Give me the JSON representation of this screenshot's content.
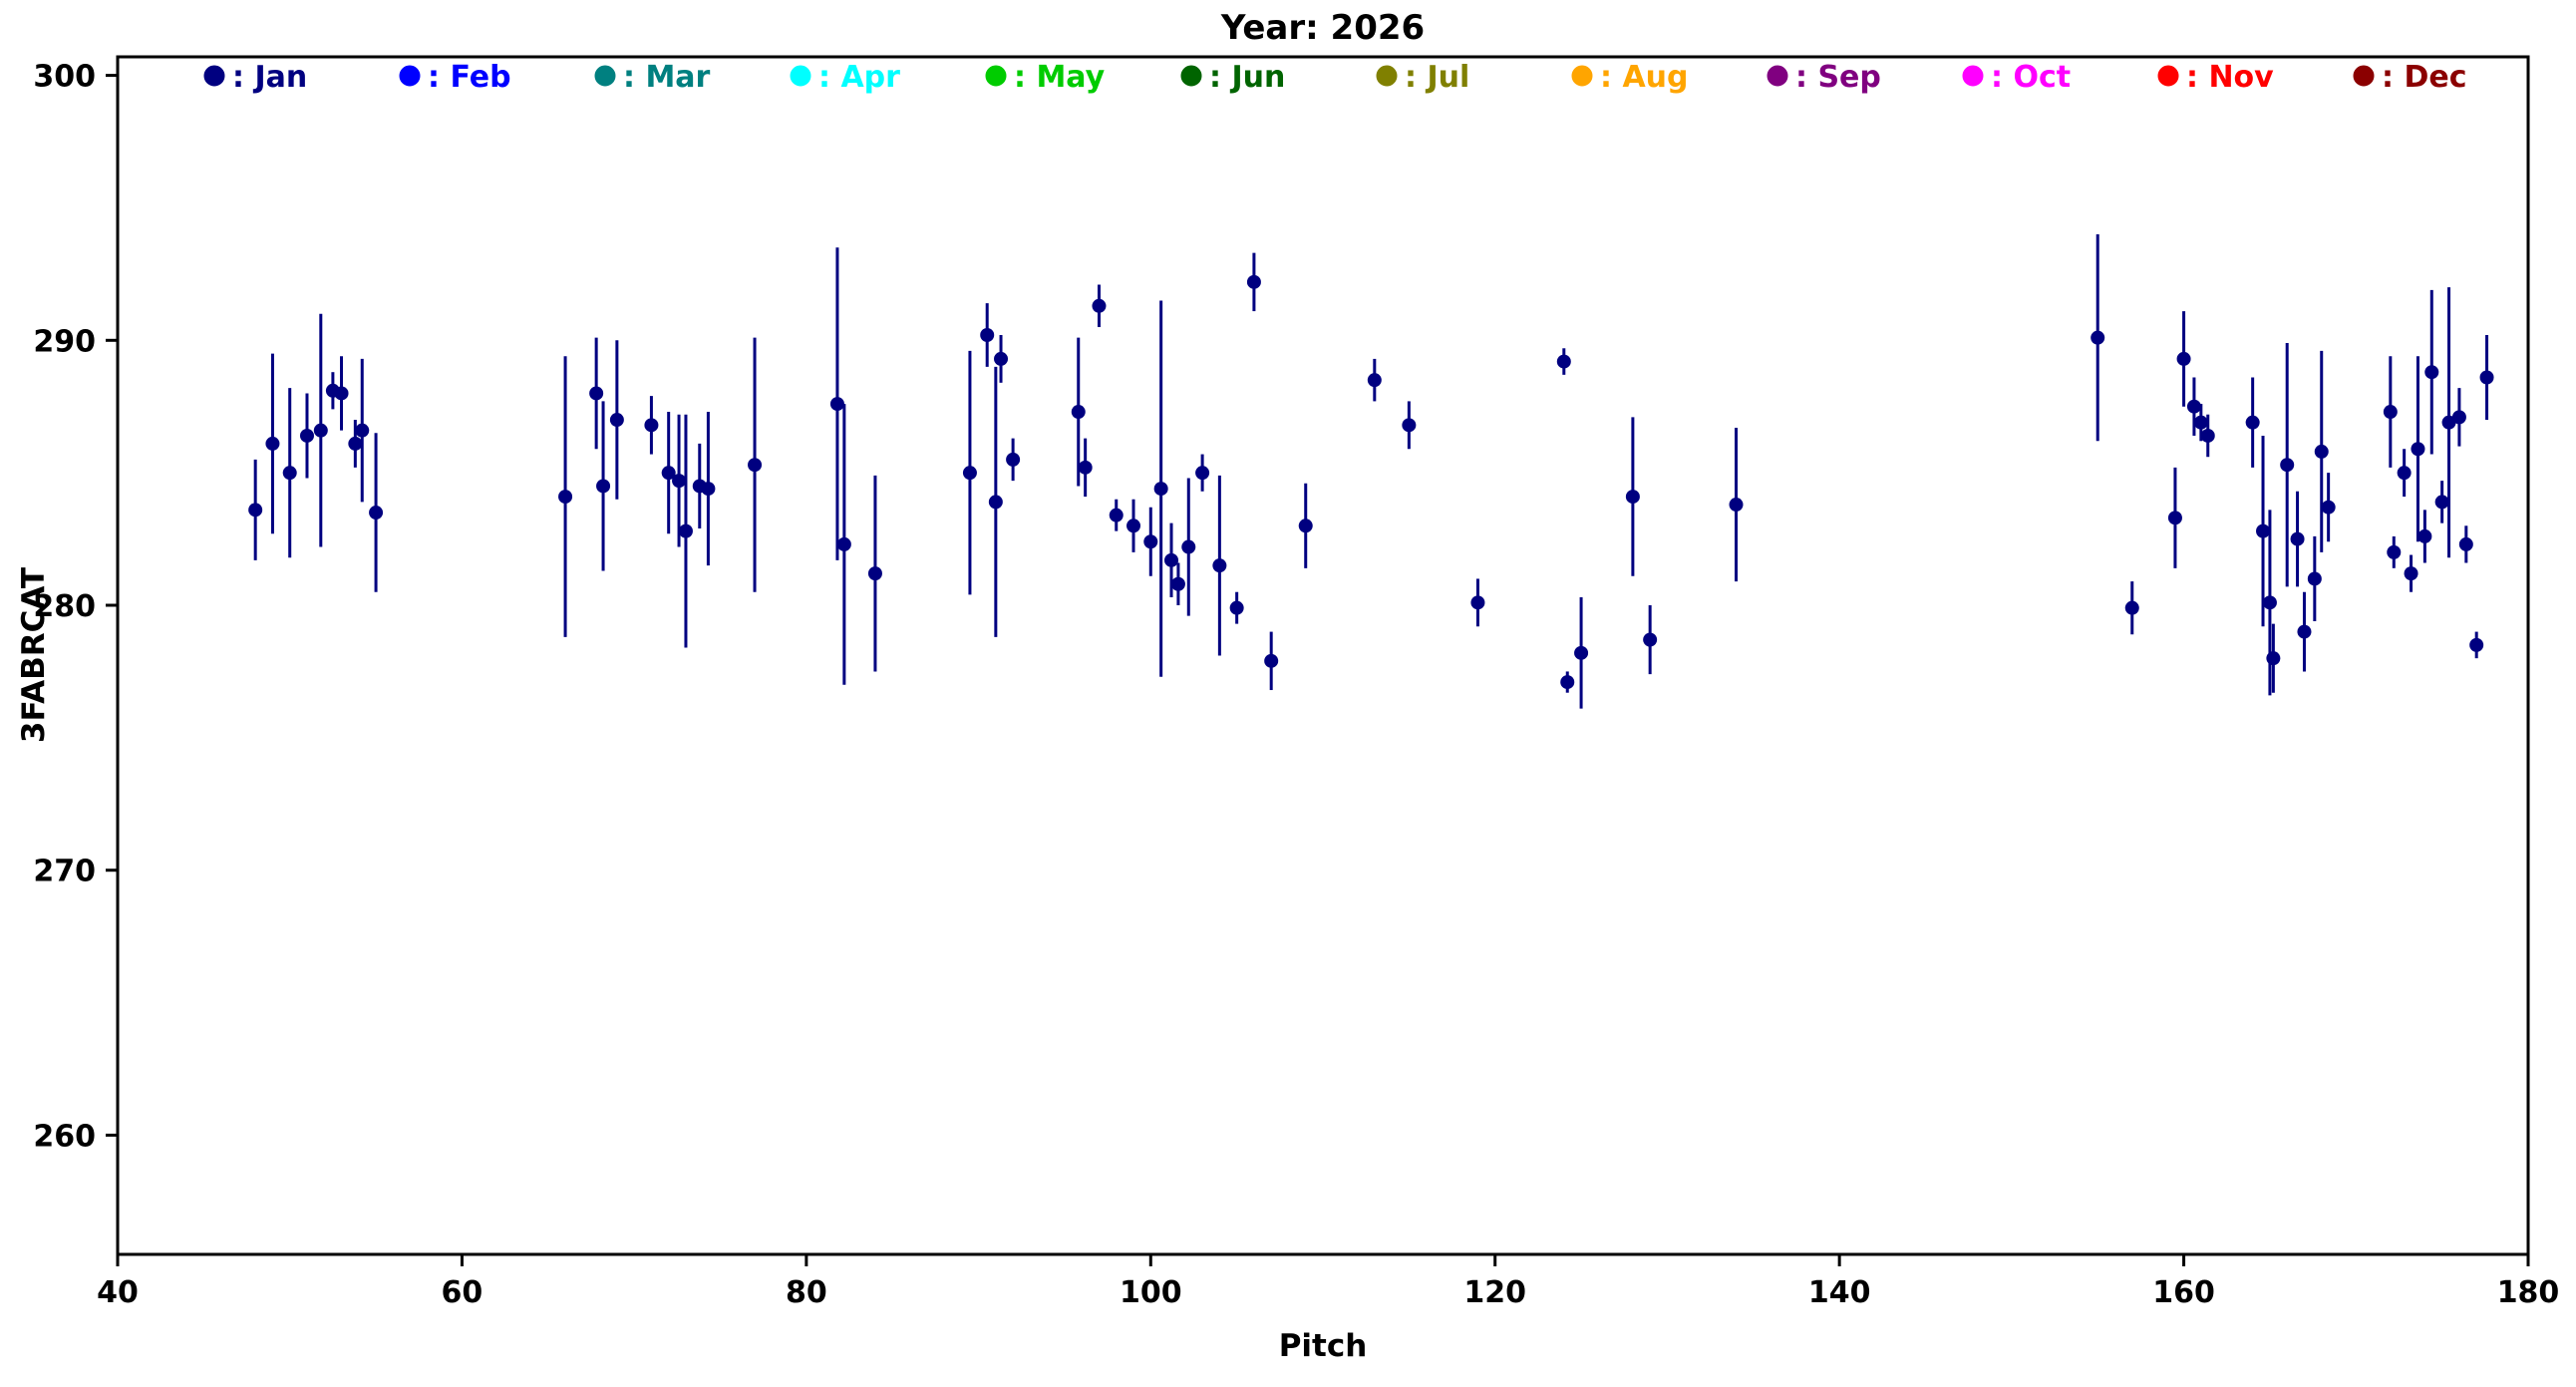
{
  "chart_data": {
    "type": "scatter",
    "title": "Year: 2026",
    "xlabel": "Pitch",
    "ylabel": "3FABRCAT",
    "xlim": [
      40,
      180
    ],
    "ylim": [
      255.5,
      300.7
    ],
    "xticks": [
      40,
      60,
      80,
      100,
      120,
      140,
      160,
      180
    ],
    "yticks": [
      260,
      270,
      280,
      290,
      300
    ],
    "grid": false,
    "legend_position": "top-inside",
    "legend": [
      {
        "label": "Jan",
        "color": "#000080"
      },
      {
        "label": "Feb",
        "color": "#0000FF"
      },
      {
        "label": "Mar",
        "color": "#008080"
      },
      {
        "label": "Apr",
        "color": "#00FFFF"
      },
      {
        "label": "May",
        "color": "#00CC00"
      },
      {
        "label": "Jun",
        "color": "#006400"
      },
      {
        "label": "Jul",
        "color": "#808000"
      },
      {
        "label": "Aug",
        "color": "#FFA500"
      },
      {
        "label": "Sep",
        "color": "#800080"
      },
      {
        "label": "Oct",
        "color": "#FF00FF"
      },
      {
        "label": "Nov",
        "color": "#FF0000"
      },
      {
        "label": "Dec",
        "color": "#8B0000"
      }
    ],
    "series": [
      {
        "name": "Jan",
        "color": "#000080",
        "marker": "circle",
        "error_bars": true,
        "points": [
          [
            48,
            283.6,
            1.9
          ],
          [
            49,
            286.1,
            3.4
          ],
          [
            50,
            285.0,
            3.2
          ],
          [
            51,
            286.4,
            1.6
          ],
          [
            51.8,
            286.6,
            4.4
          ],
          [
            52.5,
            288.1,
            0.7
          ],
          [
            53,
            288.0,
            1.4
          ],
          [
            53.8,
            286.1,
            0.9
          ],
          [
            54.2,
            286.6,
            2.7
          ],
          [
            55,
            283.5,
            3.0
          ],
          [
            66,
            284.1,
            5.3
          ],
          [
            67.8,
            288.0,
            2.1
          ],
          [
            68.2,
            284.5,
            3.2
          ],
          [
            69,
            287.0,
            3.0
          ],
          [
            71,
            286.8,
            1.1
          ],
          [
            72,
            285.0,
            2.3
          ],
          [
            72.6,
            284.7,
            2.5
          ],
          [
            73,
            282.8,
            4.4
          ],
          [
            73.8,
            284.5,
            1.6
          ],
          [
            74.3,
            284.4,
            2.9
          ],
          [
            77,
            285.3,
            4.8
          ],
          [
            81.8,
            287.6,
            5.9
          ],
          [
            82.2,
            282.3,
            5.3
          ],
          [
            84,
            281.2,
            3.7
          ],
          [
            89.5,
            285.0,
            4.6
          ],
          [
            90.5,
            290.2,
            1.2
          ],
          [
            91,
            283.9,
            5.1
          ],
          [
            91.3,
            289.3,
            0.9
          ],
          [
            92,
            285.5,
            0.8
          ],
          [
            95.8,
            287.3,
            2.8
          ],
          [
            96.2,
            285.2,
            1.1
          ],
          [
            97,
            291.3,
            0.8
          ],
          [
            98,
            283.4,
            0.6
          ],
          [
            99,
            283.0,
            1.0
          ],
          [
            100,
            282.4,
            1.3
          ],
          [
            100.6,
            284.4,
            7.1
          ],
          [
            101.2,
            281.7,
            1.4
          ],
          [
            101.6,
            280.8,
            0.8
          ],
          [
            102.2,
            282.2,
            2.6
          ],
          [
            103,
            285.0,
            0.7
          ],
          [
            104,
            281.5,
            3.4
          ],
          [
            105,
            279.9,
            0.6
          ],
          [
            106,
            292.2,
            1.1
          ],
          [
            107,
            277.9,
            1.1
          ],
          [
            109,
            283.0,
            1.6
          ],
          [
            113,
            288.5,
            0.8
          ],
          [
            115,
            286.8,
            0.9
          ],
          [
            119,
            280.1,
            0.9
          ],
          [
            124,
            289.2,
            0.5
          ],
          [
            124.2,
            277.1,
            0.4
          ],
          [
            125,
            278.2,
            2.1
          ],
          [
            128,
            284.1,
            3.0
          ],
          [
            129,
            278.7,
            1.3
          ],
          [
            134,
            283.8,
            2.9
          ],
          [
            155,
            290.1,
            3.9
          ],
          [
            157,
            279.9,
            1.0
          ],
          [
            159.5,
            283.3,
            1.9
          ],
          [
            160,
            289.3,
            1.8
          ],
          [
            160.6,
            287.5,
            1.1
          ],
          [
            161,
            286.9,
            0.7
          ],
          [
            161.4,
            286.4,
            0.8
          ],
          [
            164,
            286.9,
            1.7
          ],
          [
            164.6,
            282.8,
            3.6
          ],
          [
            165,
            280.1,
            3.5
          ],
          [
            165.2,
            278.0,
            1.3
          ],
          [
            166,
            285.3,
            4.6
          ],
          [
            166.6,
            282.5,
            1.8
          ],
          [
            167,
            279.0,
            1.5
          ],
          [
            167.6,
            281.0,
            1.6
          ],
          [
            168,
            285.8,
            3.8
          ],
          [
            168.4,
            283.7,
            1.3
          ],
          [
            172,
            287.3,
            2.1
          ],
          [
            172.2,
            282.0,
            0.6
          ],
          [
            172.8,
            285.0,
            0.9
          ],
          [
            173.2,
            281.2,
            0.7
          ],
          [
            173.6,
            285.9,
            3.5
          ],
          [
            174,
            282.6,
            1.0
          ],
          [
            174.4,
            288.8,
            3.1
          ],
          [
            175,
            283.9,
            0.8
          ],
          [
            175.4,
            286.9,
            5.1
          ],
          [
            176,
            287.1,
            1.1
          ],
          [
            176.4,
            282.3,
            0.7
          ],
          [
            177,
            278.5,
            0.5
          ],
          [
            177.6,
            288.6,
            1.6
          ]
        ]
      }
    ]
  }
}
